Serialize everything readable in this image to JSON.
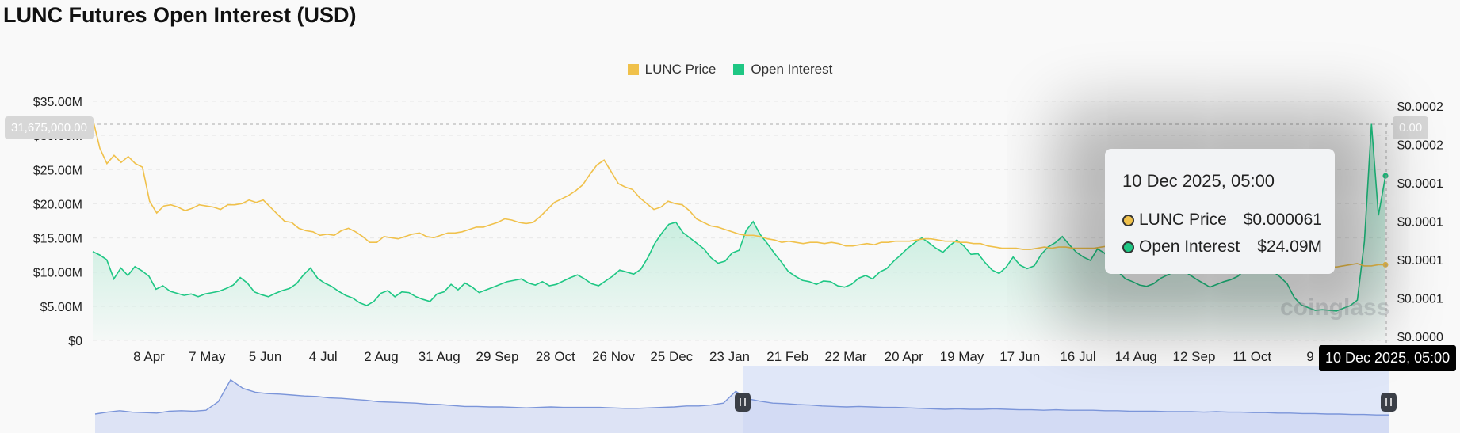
{
  "title": "LUNC Futures Open Interest (USD)",
  "legend": [
    {
      "label": "LUNC Price",
      "color": "#f0c14b"
    },
    {
      "label": "Open Interest",
      "color": "#1fc784"
    }
  ],
  "crosshair": {
    "left_value": "31,675,000.00",
    "right_value": "0.00",
    "x_label": "10 Dec 2025, 05:00"
  },
  "tooltip": {
    "time": "10 Dec 2025, 05:00",
    "rows": [
      {
        "label": "LUNC Price",
        "value": "$0.000061",
        "color": "#f0c14b"
      },
      {
        "label": "Open Interest",
        "value": "$24.09M",
        "color": "#1fc784"
      }
    ]
  },
  "watermark": "coinglass",
  "chart_data": {
    "type": "line",
    "title": "LUNC Futures Open Interest (USD)",
    "x_ticks": [
      "8 Apr",
      "7 May",
      "5 Jun",
      "4 Jul",
      "2 Aug",
      "31 Aug",
      "29 Sep",
      "28 Oct",
      "26 Nov",
      "25 Dec",
      "23 Jan",
      "21 Feb",
      "22 Mar",
      "20 Apr",
      "19 May",
      "17 Jun",
      "16 Jul",
      "14 Aug",
      "12 Sep",
      "11 Oct",
      "9"
    ],
    "y_left_ticks": [
      "$0",
      "$5.00M",
      "$10.00M",
      "$15.00M",
      "$20.00M",
      "$25.00M",
      "$30.00M",
      "$35.00M"
    ],
    "y_left_range": [
      0,
      35000000
    ],
    "y_right_ticks": [
      "$0.0000",
      "$0.0001",
      "$0.0001",
      "$0.0001",
      "$0.0001",
      "$0.0002",
      "$0.0002"
    ],
    "series": [
      {
        "name": "Open Interest",
        "axis": "left",
        "color": "#1fc784",
        "type": "area",
        "values": [
          13.0,
          12.5,
          11.8,
          9.0,
          10.6,
          9.5,
          10.8,
          10.2,
          9.4,
          7.5,
          8.0,
          7.2,
          6.9,
          6.6,
          6.8,
          6.4,
          6.8,
          7.0,
          7.2,
          7.6,
          8.1,
          9.2,
          8.4,
          7.1,
          6.7,
          6.4,
          6.9,
          7.3,
          7.6,
          8.3,
          9.6,
          10.6,
          9.1,
          8.4,
          7.9,
          7.2,
          6.6,
          6.2,
          5.5,
          5.1,
          5.7,
          6.9,
          7.3,
          6.4,
          7.1,
          7.0,
          6.4,
          6.0,
          5.7,
          6.8,
          7.1,
          8.2,
          7.4,
          8.4,
          7.8,
          7.0,
          7.4,
          7.8,
          8.2,
          8.6,
          8.8,
          9.0,
          8.4,
          8.1,
          8.6,
          8.0,
          8.2,
          8.7,
          9.2,
          9.6,
          9.0,
          8.3,
          8.0,
          8.7,
          9.4,
          10.3,
          10.0,
          9.7,
          10.4,
          12.1,
          14.2,
          15.7,
          17.0,
          17.3,
          15.8,
          15.0,
          14.2,
          13.4,
          12.1,
          11.3,
          11.6,
          12.8,
          13.2,
          16.1,
          17.4,
          15.5,
          14.2,
          12.8,
          11.5,
          10.1,
          9.4,
          8.8,
          8.6,
          8.2,
          8.7,
          8.6,
          8.0,
          7.8,
          8.2,
          9.1,
          9.5,
          9.0,
          10.0,
          10.5,
          11.6,
          12.5,
          13.5,
          14.3,
          15.0,
          14.3,
          13.5,
          12.9,
          13.9,
          14.7,
          13.8,
          12.6,
          12.7,
          11.4,
          10.3,
          9.8,
          10.7,
          12.2,
          11.0,
          10.5,
          10.9,
          12.6,
          13.7,
          14.3,
          15.2,
          14.0,
          12.9,
          12.2,
          11.7,
          13.4,
          12.8,
          11.6,
          10.0,
          9.0,
          8.6,
          8.1,
          7.9,
          8.3,
          9.1,
          9.6,
          10.1,
          10.5,
          9.7,
          9.0,
          8.4,
          7.8,
          8.2,
          8.6,
          8.9,
          9.4,
          10.4,
          11.7,
          11.6,
          11.2,
          10.1,
          9.3,
          8.3,
          6.3,
          5.2,
          4.8,
          4.4,
          4.5,
          4.4,
          4.3,
          4.7,
          5.1,
          5.9,
          14.5,
          31.7,
          18.3,
          24.09
        ]
      },
      {
        "name": "LUNC Price",
        "axis": "right",
        "color": "#f0c14b",
        "type": "line",
        "values": [
          0.000185,
          0.00016,
          0.000147,
          0.000154,
          0.000148,
          0.000153,
          0.000147,
          0.000144,
          0.000115,
          0.000105,
          0.000111,
          0.000112,
          0.00011,
          0.000107,
          0.000109,
          0.000112,
          0.000111,
          0.00011,
          0.000108,
          0.000112,
          0.000112,
          0.000113,
          0.000116,
          0.000114,
          0.000116,
          0.00011,
          0.000104,
          9.8e-05,
          9.7e-05,
          9.2e-05,
          9e-05,
          8.9e-05,
          8.6e-05,
          8.7e-05,
          8.6e-05,
          9e-05,
          9.2e-05,
          8.9e-05,
          8.5e-05,
          8e-05,
          8e-05,
          8.5e-05,
          8.4e-05,
          8.3e-05,
          8.5e-05,
          8.7e-05,
          8.8e-05,
          8.5e-05,
          8.4e-05,
          8.6e-05,
          8.8e-05,
          8.8e-05,
          8.9e-05,
          9.1e-05,
          9.3e-05,
          9.3e-05,
          9.5e-05,
          9.7e-05,
          0.0001,
          9.9e-05,
          9.7e-05,
          9.6e-05,
          9.7e-05,
          0.000102,
          0.000108,
          0.000114,
          0.000117,
          0.00012,
          0.000124,
          0.000129,
          0.000138,
          0.000146,
          0.00015,
          0.00014,
          0.00013,
          0.000127,
          0.000125,
          0.000118,
          0.000113,
          0.000108,
          0.00011,
          0.000115,
          0.000113,
          0.000112,
          0.000107,
          0.0001,
          9.7e-05,
          9.4e-05,
          9.3e-05,
          9.1e-05,
          8.9e-05,
          8.7e-05,
          8.6e-05,
          8.6e-05,
          8.5e-05,
          8.3e-05,
          8.2e-05,
          8e-05,
          8.1e-05,
          8e-05,
          7.9e-05,
          8e-05,
          8e-05,
          7.9e-05,
          8e-05,
          7.9e-05,
          7.7e-05,
          7.7e-05,
          7.8e-05,
          7.9e-05,
          7.8e-05,
          8e-05,
          8e-05,
          8.1e-05,
          8.1e-05,
          8.1e-05,
          8.2e-05,
          8.3e-05,
          8.3e-05,
          8.2e-05,
          8.1e-05,
          8.1e-05,
          8e-05,
          8e-05,
          7.9e-05,
          7.9e-05,
          7.7e-05,
          7.6e-05,
          7.5e-05,
          7.5e-05,
          7.5e-05,
          7.4e-05,
          7.4e-05,
          7.5e-05,
          7.6e-05,
          7.5e-05,
          7.6e-05,
          7.6e-05,
          7.5e-05,
          7.5e-05,
          7.5e-05,
          7.5e-05,
          7.6e-05,
          7.7e-05,
          7.7e-05,
          7.8e-05,
          7.7e-05,
          7.8e-05,
          7.9e-05,
          7.8e-05,
          7.8e-05,
          7.7e-05,
          7.7e-05,
          7.6e-05,
          7.6e-05,
          7.7e-05,
          7.6e-05,
          7.5e-05,
          7.6e-05,
          7.6e-05,
          7.5e-05,
          7.4e-05,
          7.1e-05,
          6.8e-05,
          6.7e-05,
          6.6e-05,
          6.6e-05,
          6.5e-05,
          6.6e-05,
          6.6e-05,
          6.5e-05,
          6.4e-05,
          6.2e-05,
          6.1e-05,
          6e-05,
          5.9e-05,
          6e-05,
          6.1e-05,
          6.2e-05,
          6e-05,
          6e-05,
          6.1e-05,
          6.1e-05
        ]
      }
    ],
    "overview": {
      "color": "#7b95d9",
      "values": [
        3.0,
        3.4,
        3.7,
        3.4,
        3.3,
        3.2,
        3.6,
        3.7,
        3.6,
        3.8,
        5.6,
        10.2,
        8.4,
        7.6,
        7.3,
        7.2,
        7.0,
        6.8,
        6.7,
        6.4,
        6.3,
        6.1,
        5.9,
        5.6,
        5.5,
        5.4,
        5.3,
        5.1,
        5.0,
        4.8,
        4.6,
        4.6,
        4.5,
        4.5,
        4.4,
        4.3,
        4.4,
        4.5,
        4.4,
        4.4,
        4.4,
        4.4,
        4.3,
        4.2,
        4.2,
        4.3,
        4.4,
        4.5,
        4.7,
        4.7,
        4.9,
        5.3,
        7.8,
        6.2,
        5.7,
        5.3,
        5.2,
        5.0,
        4.9,
        4.7,
        4.6,
        4.5,
        4.6,
        4.5,
        4.4,
        4.4,
        4.3,
        4.2,
        4.1,
        4.0,
        4.1,
        4.0,
        4.0,
        4.1,
        4.0,
        3.9,
        3.9,
        3.8,
        3.9,
        3.8,
        3.8,
        3.8,
        3.7,
        3.7,
        3.6,
        3.6,
        3.6,
        3.5,
        3.5,
        3.5,
        3.4,
        3.5,
        3.4,
        3.4,
        3.3,
        3.3,
        3.2,
        3.2,
        3.1,
        3.1,
        3.0,
        3.0,
        2.9,
        2.9,
        2.8,
        2.8
      ]
    }
  }
}
